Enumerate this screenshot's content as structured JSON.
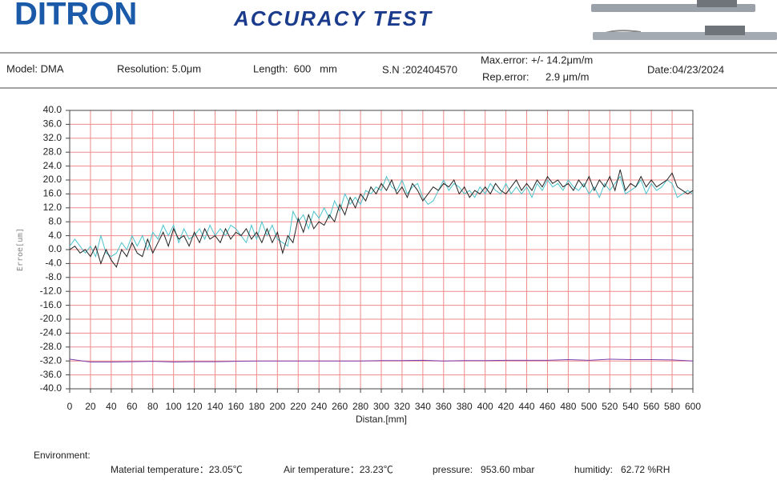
{
  "header": {
    "logo": "DITRON",
    "title": "ACCURACY TEST"
  },
  "info": {
    "model": "Model: DMA",
    "resolution": "Resolution: 5.0μm",
    "length": "Length:  600   mm",
    "serial": "S.N :202404570",
    "max_error_label": "Max.error:",
    "max_error_value": "+/- 14.2μm/m",
    "rep_error_label": "Rep.error:",
    "rep_error_value": "2.9 μm/m",
    "date": "Date:04/23/2024"
  },
  "chart_data": {
    "type": "line",
    "y_label": "Erroe[um]",
    "x_label": "Distan.[mm]",
    "grid": true,
    "grid_color": "#f08a8a",
    "x": [
      0,
      5,
      10,
      15,
      20,
      25,
      30,
      35,
      40,
      45,
      50,
      55,
      60,
      65,
      70,
      75,
      80,
      85,
      90,
      95,
      100,
      105,
      110,
      115,
      120,
      125,
      130,
      135,
      140,
      145,
      150,
      155,
      160,
      165,
      170,
      175,
      180,
      185,
      190,
      195,
      200,
      205,
      210,
      215,
      220,
      225,
      230,
      235,
      240,
      245,
      250,
      255,
      260,
      265,
      270,
      275,
      280,
      285,
      290,
      295,
      300,
      305,
      310,
      315,
      320,
      325,
      330,
      335,
      340,
      345,
      350,
      355,
      360,
      365,
      370,
      375,
      380,
      385,
      390,
      395,
      400,
      405,
      410,
      415,
      420,
      425,
      430,
      435,
      440,
      445,
      450,
      455,
      460,
      465,
      470,
      475,
      480,
      485,
      490,
      495,
      500,
      505,
      510,
      515,
      520,
      525,
      530,
      535,
      540,
      545,
      550,
      555,
      560,
      565,
      570,
      575,
      580,
      585,
      590,
      595,
      600
    ],
    "series": [
      {
        "color": "#4cc3cc",
        "values": [
          1,
          3,
          1,
          -1,
          1,
          -2,
          4,
          -1,
          -2,
          -1,
          2,
          0,
          4,
          1,
          4,
          0,
          5,
          3,
          7,
          4,
          7,
          2,
          6,
          3,
          4,
          6,
          3,
          7,
          4,
          6,
          4,
          7,
          6,
          4,
          2,
          7,
          3,
          8,
          4,
          7,
          3,
          2,
          1,
          11,
          8,
          10,
          6,
          11,
          9,
          12,
          9,
          14,
          11,
          16,
          13,
          15,
          13,
          17,
          16,
          18,
          17,
          21,
          18,
          17,
          20,
          16,
          18,
          19,
          15,
          13,
          14,
          17,
          20,
          17,
          19,
          18,
          16,
          17,
          15,
          18,
          16,
          19,
          17,
          16,
          19,
          16,
          18,
          16,
          18,
          15,
          19,
          17,
          20,
          18,
          19,
          17,
          20,
          18,
          17,
          19,
          16,
          18,
          15,
          19,
          17,
          19,
          21,
          16,
          17,
          18,
          20,
          16,
          19,
          17,
          18,
          20,
          19,
          15,
          16,
          17,
          16
        ]
      },
      {
        "color": "#222222",
        "values": [
          0,
          1,
          -1,
          0,
          -2,
          1,
          -4,
          0,
          -3,
          -5,
          0,
          -2,
          2,
          -1,
          -2,
          3,
          -1,
          2,
          5,
          1,
          6,
          3,
          4,
          1,
          5,
          2,
          6,
          3,
          4,
          2,
          6,
          3,
          5,
          4,
          6,
          3,
          5,
          2,
          6,
          2,
          5,
          -1,
          4,
          2,
          9,
          5,
          10,
          6,
          8,
          7,
          10,
          8,
          13,
          10,
          15,
          12,
          16,
          14,
          18,
          16,
          19,
          17,
          20,
          16,
          18,
          15,
          19,
          17,
          14,
          16,
          18,
          17,
          19,
          18,
          20,
          16,
          18,
          15,
          17,
          16,
          18,
          16,
          19,
          17,
          16,
          18,
          20,
          17,
          19,
          17,
          20,
          18,
          21,
          19,
          20,
          18,
          19,
          17,
          20,
          18,
          21,
          17,
          20,
          18,
          21,
          17,
          23,
          17,
          19,
          18,
          21,
          18,
          20,
          18,
          19,
          20,
          22,
          18,
          17,
          16,
          17
        ]
      },
      {
        "color": "#7a3fb0",
        "x": [
          0,
          20,
          40,
          60,
          80,
          100,
          120,
          140,
          160,
          180,
          200,
          220,
          240,
          260,
          280,
          300,
          320,
          340,
          360,
          380,
          400,
          420,
          440,
          460,
          480,
          500,
          520,
          540,
          560,
          580,
          600
        ],
        "values": [
          -31.5,
          -32.3,
          -32.3,
          -32.2,
          -32.1,
          -32.3,
          -32.2,
          -32.2,
          -32.1,
          -32,
          -32,
          -32,
          -32,
          -32,
          -32,
          -31.9,
          -31.9,
          -31.8,
          -32,
          -31.9,
          -31.9,
          -31.8,
          -31.8,
          -31.8,
          -31.6,
          -31.8,
          -31.5,
          -31.6,
          -31.6,
          -31.7,
          -32
        ]
      }
    ],
    "xlim": [
      0,
      600
    ],
    "xticks": [
      0,
      20,
      40,
      60,
      80,
      100,
      120,
      140,
      160,
      180,
      200,
      220,
      240,
      260,
      280,
      300,
      320,
      340,
      360,
      380,
      400,
      420,
      440,
      460,
      480,
      500,
      520,
      540,
      560,
      580,
      600
    ],
    "ylim": [
      -40,
      40
    ],
    "yticks": [
      {
        "value": 40,
        "label": "40.0"
      },
      {
        "value": 36,
        "label": "36.0"
      },
      {
        "value": 32,
        "label": "32.0"
      },
      {
        "value": 28,
        "label": "28.0"
      },
      {
        "value": 24,
        "label": "24.0"
      },
      {
        "value": 20,
        "label": "20.0"
      },
      {
        "value": 16,
        "label": "16.0"
      },
      {
        "value": 12,
        "label": "12.0"
      },
      {
        "value": 8,
        "label": "8.0"
      },
      {
        "value": 4,
        "label": "4.0"
      },
      {
        "value": 0,
        "label": "0.0"
      },
      {
        "value": -4,
        "label": "-4.0"
      },
      {
        "value": -8,
        "label": "-8.0"
      },
      {
        "value": -12,
        "label": "-12.0"
      },
      {
        "value": -16,
        "label": "-16.0"
      },
      {
        "value": -20,
        "label": "-20.0"
      },
      {
        "value": -24,
        "label": "-24.0"
      },
      {
        "value": -28,
        "label": "-28.0"
      },
      {
        "value": -32,
        "label": "-32.0"
      },
      {
        "value": -36,
        "label": "-36.0"
      },
      {
        "value": -40,
        "label": "-40.0"
      }
    ]
  },
  "environment": {
    "label": "Environment:",
    "material_temperature": "Material temperature：23.05℃",
    "air_temperature": "Air temperature：23.23℃",
    "pressure": "pressure:   953.60 mbar",
    "humidity": "humitidy:   62.72 %RH"
  }
}
